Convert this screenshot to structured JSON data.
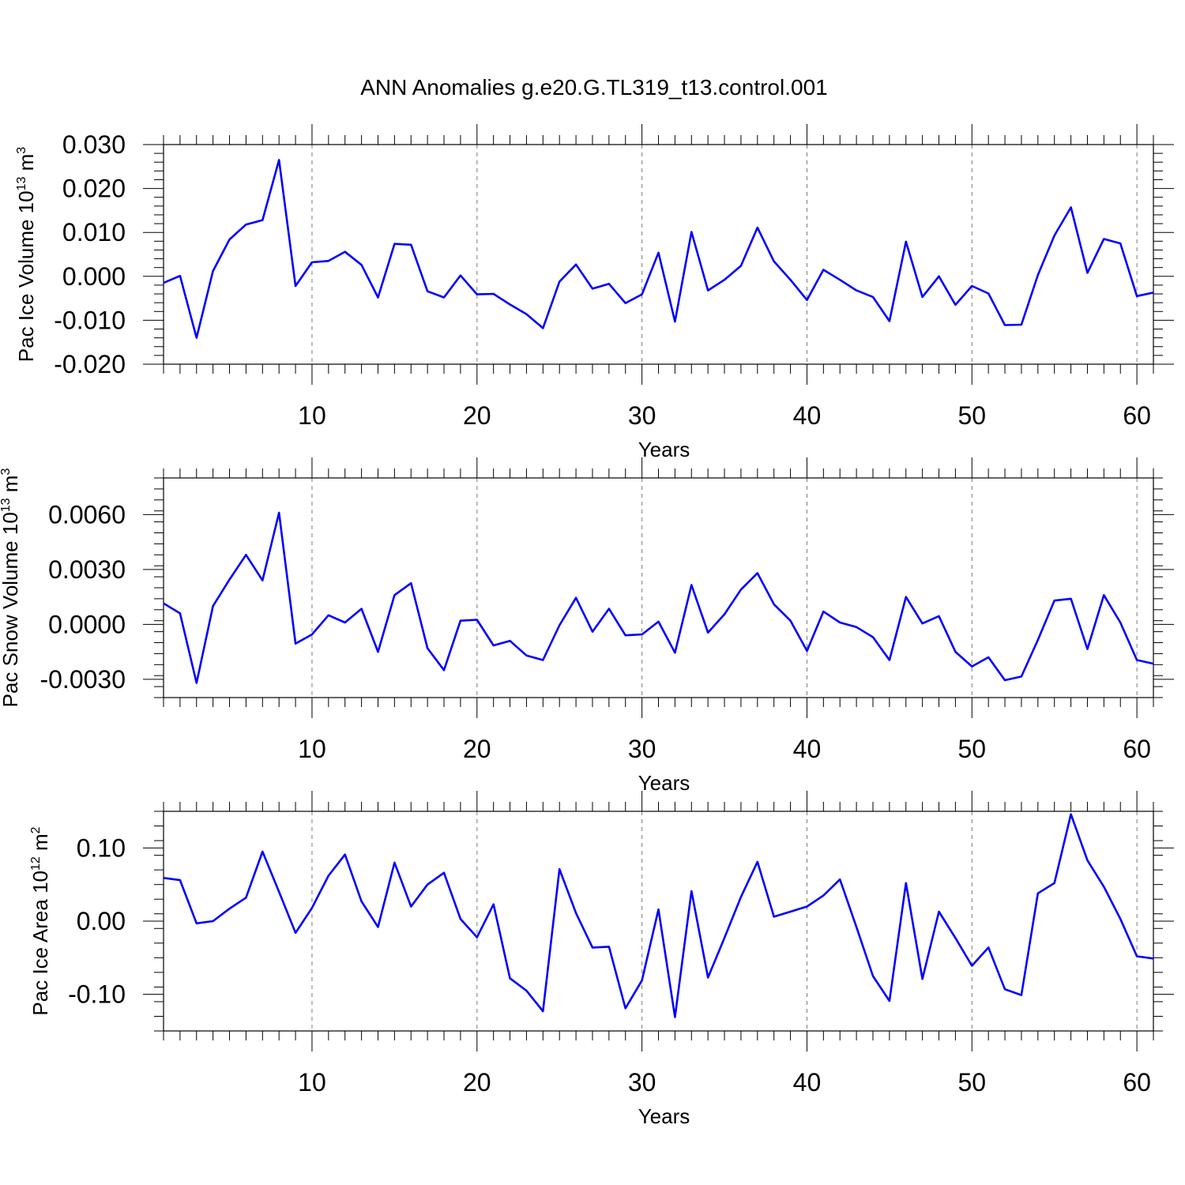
{
  "title": "ANN Anomalies g.e20.G.TL319_t13.control.001",
  "line_color": "#0000ff",
  "chart_data": [
    {
      "type": "line",
      "xlabel": "Years",
      "ylabel": "Pac Ice Volume 10",
      "ylabel_exp": "13",
      "ylabel_unit": " m",
      "ylabel_unit_exp": "3",
      "xlim": [
        1,
        61
      ],
      "ylim": [
        -0.02,
        0.03
      ],
      "x_ticks": [
        10,
        20,
        30,
        40,
        50,
        60
      ],
      "x_tick_labels": [
        "10",
        "20",
        "30",
        "40",
        "50",
        "60"
      ],
      "y_ticks": [
        -0.02,
        -0.01,
        0.0,
        0.01,
        0.02,
        0.03
      ],
      "y_tick_labels": [
        "-0.020",
        "-0.010",
        "0.000",
        "0.010",
        "0.020",
        "0.030"
      ],
      "y_minor_step": 0.002,
      "vertical_grid": "dashed at major x ticks",
      "x": [
        1,
        2,
        3,
        4,
        5,
        6,
        7,
        8,
        9,
        10,
        11,
        12,
        13,
        14,
        15,
        16,
        17,
        18,
        19,
        20,
        21,
        22,
        23,
        24,
        25,
        26,
        27,
        28,
        29,
        30,
        31,
        32,
        33,
        34,
        35,
        36,
        37,
        38,
        39,
        40,
        41,
        42,
        43,
        44,
        45,
        46,
        47,
        48,
        49,
        50,
        51,
        52,
        53,
        54,
        55,
        56,
        57,
        58,
        59,
        60,
        61
      ],
      "y": [
        -0.0015,
        0.0001,
        -0.014,
        0.0012,
        0.0084,
        0.0118,
        0.0128,
        0.0265,
        -0.0022,
        0.0032,
        0.0035,
        0.0056,
        0.0026,
        -0.0048,
        0.0074,
        0.0072,
        -0.0034,
        -0.0048,
        0.0002,
        -0.0041,
        -0.004,
        -0.0064,
        -0.0086,
        -0.0118,
        -0.0012,
        0.0027,
        -0.0028,
        -0.0017,
        -0.0061,
        -0.0041,
        0.0054,
        -0.0103,
        0.0101,
        -0.0032,
        -0.0008,
        0.0024,
        0.0111,
        0.0034,
        -0.0008,
        -0.0054,
        0.0015,
        -0.0008,
        -0.0032,
        -0.0047,
        -0.0102,
        0.0079,
        -0.0047,
        0.0,
        -0.0065,
        -0.0022,
        -0.0039,
        -0.0111,
        -0.011,
        0.0003,
        0.0093,
        0.0157,
        0.0008,
        0.0085,
        0.0075,
        -0.0045,
        -0.0037
      ]
    },
    {
      "type": "line",
      "xlabel": "Years",
      "ylabel": "Pac Snow Volume 10",
      "ylabel_exp": "13",
      "ylabel_unit": " m",
      "ylabel_unit_exp": "3",
      "xlim": [
        1,
        61
      ],
      "ylim": [
        -0.004,
        0.008
      ],
      "x_ticks": [
        10,
        20,
        30,
        40,
        50,
        60
      ],
      "x_tick_labels": [
        "10",
        "20",
        "30",
        "40",
        "50",
        "60"
      ],
      "y_ticks": [
        -0.003,
        0.0,
        0.003,
        0.006
      ],
      "y_tick_labels": [
        "-0.0030",
        "0.0000",
        "0.0030",
        "0.0060"
      ],
      "y_minor_step": 0.0006,
      "vertical_grid": "dashed at major x ticks",
      "x": [
        1,
        2,
        3,
        4,
        5,
        6,
        7,
        8,
        9,
        10,
        11,
        12,
        13,
        14,
        15,
        16,
        17,
        18,
        19,
        20,
        21,
        22,
        23,
        24,
        25,
        26,
        27,
        28,
        29,
        30,
        31,
        32,
        33,
        34,
        35,
        36,
        37,
        38,
        39,
        40,
        41,
        42,
        43,
        44,
        45,
        46,
        47,
        48,
        49,
        50,
        51,
        52,
        53,
        54,
        55,
        56,
        57,
        58,
        59,
        60,
        61
      ],
      "y": [
        0.00115,
        0.0006,
        -0.0032,
        0.001,
        0.00245,
        0.0038,
        0.0024,
        0.0061,
        -0.00105,
        -0.00055,
        0.0005,
        0.0001,
        0.00085,
        -0.0015,
        0.0016,
        0.00225,
        -0.0013,
        -0.0025,
        0.0002,
        0.00025,
        -0.00115,
        -0.0009,
        -0.0017,
        -0.00195,
        -5e-05,
        0.00145,
        -0.0004,
        0.00085,
        -0.0006,
        -0.00055,
        0.00015,
        -0.00155,
        0.00215,
        -0.00045,
        0.00055,
        0.0019,
        0.0028,
        0.0011,
        0.0002,
        -0.00145,
        0.0007,
        0.0001,
        -0.00015,
        -0.0007,
        -0.00195,
        0.0015,
        5e-05,
        0.00045,
        -0.0015,
        -0.0023,
        -0.0018,
        -0.00305,
        -0.00285,
        -0.00085,
        0.0013,
        0.0014,
        -0.00135,
        0.0016,
        0.0001,
        -0.00195,
        -0.00215
      ]
    },
    {
      "type": "line",
      "xlabel": "Years",
      "ylabel": "Pac Ice Area 10",
      "ylabel_exp": "12",
      "ylabel_unit": " m",
      "ylabel_unit_exp": "2",
      "xlim": [
        1,
        61
      ],
      "ylim": [
        -0.15,
        0.15
      ],
      "x_ticks": [
        10,
        20,
        30,
        40,
        50,
        60
      ],
      "x_tick_labels": [
        "10",
        "20",
        "30",
        "40",
        "50",
        "60"
      ],
      "y_ticks": [
        -0.1,
        0.0,
        0.1
      ],
      "y_tick_labels": [
        "-0.10",
        "0.00",
        "0.10"
      ],
      "y_minor_step": 0.02,
      "vertical_grid": "dashed at major x ticks",
      "x": [
        1,
        2,
        3,
        4,
        5,
        6,
        7,
        8,
        9,
        10,
        11,
        12,
        13,
        14,
        15,
        16,
        17,
        18,
        19,
        20,
        21,
        22,
        23,
        24,
        25,
        26,
        27,
        28,
        29,
        30,
        31,
        32,
        33,
        34,
        35,
        36,
        37,
        38,
        39,
        40,
        41,
        42,
        43,
        44,
        45,
        46,
        47,
        48,
        49,
        50,
        51,
        52,
        53,
        54,
        55,
        56,
        57,
        58,
        59,
        60,
        61
      ],
      "y": [
        0.059,
        0.056,
        -0.003,
        0.0,
        0.017,
        0.032,
        0.095,
        0.04,
        -0.016,
        0.018,
        0.062,
        0.091,
        0.027,
        -0.008,
        0.08,
        0.02,
        0.05,
        0.066,
        0.003,
        -0.022,
        0.023,
        -0.078,
        -0.095,
        -0.123,
        0.071,
        0.011,
        -0.036,
        -0.035,
        -0.119,
        -0.081,
        0.016,
        -0.131,
        0.041,
        -0.077,
        -0.023,
        0.033,
        0.081,
        0.006,
        0.013,
        0.02,
        0.035,
        0.057,
        -0.008,
        -0.075,
        -0.109,
        0.052,
        -0.079,
        0.013,
        -0.023,
        -0.061,
        -0.036,
        -0.093,
        -0.101,
        0.038,
        0.052,
        0.146,
        0.083,
        0.047,
        0.003,
        -0.048,
        -0.051
      ]
    }
  ]
}
